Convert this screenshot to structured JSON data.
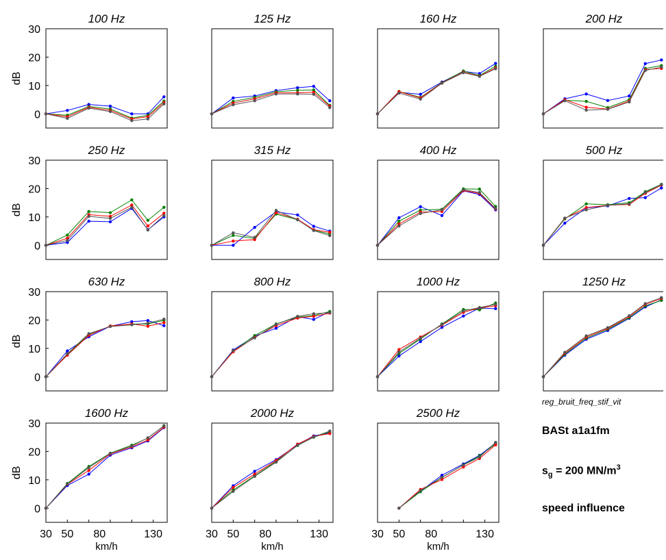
{
  "chart_data": {
    "type": "line",
    "layout": "small-multiples 4x4",
    "x_ticks": [
      30,
      50,
      70,
      90,
      110,
      130
    ],
    "x_tick_labels": [
      "30",
      "50",
      "80",
      "130"
    ],
    "x_tick_label_values": [
      30,
      50,
      80,
      130
    ],
    "xlim": [
      30,
      143
    ],
    "xlabel": "km/h",
    "ylabel": "dB",
    "ylim": [
      -5,
      30
    ],
    "y_ticks": [
      0,
      10,
      20,
      30
    ],
    "series_colors": [
      "#0000ff",
      "#008000",
      "#ff0000",
      "#555555"
    ],
    "panels": [
      {
        "title": "100 Hz",
        "x": [
          30,
          50,
          70,
          90,
          110,
          125,
          140
        ],
        "series": [
          {
            "values": [
              0,
              1.2,
              3.3,
              2.7,
              0,
              0,
              6
            ]
          },
          {
            "values": [
              0,
              -0.5,
              2.6,
              1.7,
              -1.5,
              -0.5,
              4.5
            ]
          },
          {
            "values": [
              0,
              -1,
              2.3,
              1.2,
              -1.8,
              -1,
              4
            ]
          },
          {
            "values": [
              0,
              -1.6,
              2,
              0.8,
              -2.4,
              -1.8,
              3.5
            ]
          }
        ]
      },
      {
        "title": "125 Hz",
        "x": [
          30,
          50,
          70,
          90,
          110,
          125,
          140
        ],
        "series": [
          {
            "values": [
              0,
              5.6,
              6.3,
              8.2,
              9.2,
              9.7,
              4.6
            ]
          },
          {
            "values": [
              0,
              4.4,
              5.8,
              7.8,
              8.3,
              8.4,
              3
            ]
          },
          {
            "values": [
              0,
              3.8,
              5.3,
              7.4,
              7.4,
              7.6,
              2.7
            ]
          },
          {
            "values": [
              0,
              3.2,
              4.6,
              7,
              7,
              6.9,
              2.2
            ]
          }
        ]
      },
      {
        "title": "160 Hz",
        "x": [
          30,
          50,
          70,
          90,
          110,
          125,
          140
        ],
        "series": [
          {
            "values": [
              0,
              7.6,
              6.9,
              11.2,
              15,
              14.2,
              17.8
            ]
          },
          {
            "values": [
              0,
              7.9,
              5.8,
              11,
              15.1,
              13.5,
              16.8
            ]
          },
          {
            "values": [
              0,
              7.8,
              5.6,
              10.9,
              14.7,
              13.3,
              16.2
            ]
          },
          {
            "values": [
              0,
              7.3,
              5.2,
              10.8,
              14.5,
              13.2,
              15.9
            ]
          }
        ]
      },
      {
        "title": "200 Hz",
        "x": [
          30,
          50,
          70,
          90,
          110,
          125,
          140
        ],
        "series": [
          {
            "values": [
              0,
              5.3,
              7,
              4.7,
              6.3,
              17.7,
              19
            ]
          },
          {
            "values": [
              0,
              4.8,
              4.4,
              2.2,
              5,
              16,
              17
            ]
          },
          {
            "values": [
              0,
              5,
              2.3,
              1.7,
              4.5,
              15.6,
              16
            ]
          },
          {
            "values": [
              0,
              4.6,
              1.3,
              1.6,
              4.2,
              15.3,
              16.5
            ]
          }
        ]
      },
      {
        "title": "250 Hz",
        "x": [
          30,
          50,
          70,
          90,
          110,
          125,
          140
        ],
        "series": [
          {
            "values": [
              0,
              1,
              8.5,
              8.3,
              13,
              5.5,
              10
            ]
          },
          {
            "values": [
              0,
              3.6,
              11.9,
              11.5,
              16,
              8.8,
              13.4
            ]
          },
          {
            "values": [
              0,
              2.5,
              10.8,
              10.2,
              14.2,
              6.8,
              11.3
            ]
          },
          {
            "values": [
              0,
              1.7,
              10.2,
              9.5,
              13.4,
              5.4,
              10.5
            ]
          }
        ]
      },
      {
        "title": "315 Hz",
        "x": [
          30,
          50,
          70,
          90,
          110,
          125,
          140
        ],
        "series": [
          {
            "values": [
              0,
              0,
              6.3,
              11.8,
              10.7,
              6.7,
              5
            ]
          },
          {
            "values": [
              0,
              3.5,
              2.4,
              11,
              9,
              5.3,
              4
            ]
          },
          {
            "values": [
              0,
              1.5,
              2,
              11.5,
              9.2,
              5.5,
              4.6
            ]
          },
          {
            "values": [
              0,
              4.4,
              2.8,
              12.3,
              9,
              5.2,
              3.4
            ]
          }
        ]
      },
      {
        "title": "400 Hz",
        "x": [
          30,
          50,
          70,
          90,
          110,
          125,
          140
        ],
        "series": [
          {
            "values": [
              0,
              9.7,
              13.6,
              10.5,
              19.2,
              17.9,
              12.5
            ]
          },
          {
            "values": [
              0,
              8.5,
              12.4,
              12.7,
              19.9,
              19.8,
              13.7
            ]
          },
          {
            "values": [
              0,
              7.5,
              11.7,
              11.9,
              19.3,
              18.3,
              12.8
            ]
          },
          {
            "values": [
              0,
              6.8,
              11.2,
              12.5,
              19.6,
              18.6,
              13
            ]
          }
        ]
      },
      {
        "title": "500 Hz",
        "x": [
          30,
          50,
          70,
          90,
          110,
          125,
          140
        ],
        "series": [
          {
            "values": [
              0,
              7.8,
              13.2,
              13.9,
              16.5,
              16.8,
              20.2
            ]
          },
          {
            "values": [
              0,
              9.3,
              14.6,
              14.3,
              15,
              18.9,
              21.5
            ]
          },
          {
            "values": [
              0,
              9.5,
              13.3,
              14.1,
              14.4,
              18.3,
              21.2
            ]
          },
          {
            "values": [
              0,
              9.6,
              12.5,
              14.1,
              14.6,
              18.6,
              21.4
            ]
          }
        ]
      },
      {
        "title": "630 Hz",
        "x": [
          30,
          50,
          70,
          90,
          110,
          125,
          140
        ],
        "series": [
          {
            "values": [
              0,
              9.1,
              14.1,
              17.8,
              19.4,
              19.8,
              18
            ]
          },
          {
            "values": [
              0,
              7.8,
              15,
              17.8,
              18.6,
              18.6,
              19.9
            ]
          },
          {
            "values": [
              0,
              7.6,
              14.6,
              17.9,
              18.6,
              17.8,
              19.1
            ]
          },
          {
            "values": [
              0,
              8.1,
              15.2,
              17.7,
              18.3,
              18.9,
              20.3
            ]
          }
        ]
      },
      {
        "title": "800 Hz",
        "x": [
          30,
          50,
          70,
          90,
          110,
          125,
          140
        ],
        "series": [
          {
            "values": [
              0,
              9.4,
              14.3,
              17.1,
              21.2,
              20.2,
              22.9
            ]
          },
          {
            "values": [
              0,
              9,
              14.5,
              18.6,
              21,
              21.6,
              23
            ]
          },
          {
            "values": [
              0,
              8.8,
              13.9,
              18,
              20.7,
              21.3,
              22.4
            ]
          },
          {
            "values": [
              0,
              9.2,
              13.7,
              18.5,
              21.3,
              22.2,
              22.6
            ]
          }
        ]
      },
      {
        "title": "1000 Hz",
        "x": [
          30,
          50,
          70,
          90,
          110,
          125,
          140
        ],
        "series": [
          {
            "values": [
              0,
              7.3,
              12.4,
              17.4,
              21.4,
              24.2,
              24
            ]
          },
          {
            "values": [
              0,
              8.2,
              13.3,
              18.6,
              23.7,
              23.6,
              26
            ]
          },
          {
            "values": [
              0,
              9.6,
              14,
              18.2,
              22.7,
              24.3,
              25
            ]
          },
          {
            "values": [
              0,
              8.7,
              13.6,
              18.4,
              23.2,
              24.4,
              25.5
            ]
          }
        ]
      },
      {
        "title": "1250 Hz",
        "x": [
          30,
          50,
          70,
          90,
          110,
          125,
          140
        ],
        "series": [
          {
            "values": [
              0,
              7.6,
              13.2,
              16.3,
              20.6,
              24.6,
              27.1
            ]
          },
          {
            "values": [
              0,
              7.9,
              13.6,
              16.7,
              20.8,
              25,
              26.9
            ]
          },
          {
            "values": [
              0,
              8.3,
              14,
              17,
              21.2,
              25.5,
              27.6
            ]
          },
          {
            "values": [
              0,
              8.6,
              14.4,
              17.3,
              21.5,
              25.8,
              27.9
            ]
          }
        ]
      },
      {
        "title": "1600 Hz",
        "x": [
          30,
          50,
          70,
          90,
          110,
          125,
          140
        ],
        "series": [
          {
            "values": [
              0,
              8,
              12,
              18.7,
              21.3,
              23.7,
              28.4
            ]
          },
          {
            "values": [
              0,
              8.7,
              14.7,
              19.4,
              22.2,
              24.7,
              29.1
            ]
          },
          {
            "values": [
              0,
              8.4,
              13.3,
              19.1,
              21.6,
              24,
              28.6
            ]
          },
          {
            "values": [
              0,
              8.5,
              14.3,
              19.3,
              21.9,
              24.8,
              29
            ]
          }
        ]
      },
      {
        "title": "2000 Hz",
        "x": [
          30,
          50,
          70,
          90,
          110,
          125,
          140
        ],
        "series": [
          {
            "values": [
              0,
              7.9,
              13,
              17.1,
              22.4,
              25.5,
              26.5
            ]
          },
          {
            "values": [
              0,
              6.4,
              11.4,
              16.5,
              22.1,
              25,
              26.9
            ]
          },
          {
            "values": [
              0,
              7.3,
              12,
              16.8,
              22.6,
              25.3,
              26.3
            ]
          },
          {
            "values": [
              0,
              5.9,
              11.2,
              16.2,
              22.2,
              25.1,
              27.2
            ]
          }
        ]
      },
      {
        "title": "2500 Hz",
        "x": [
          50,
          70,
          90,
          110,
          125,
          140
        ],
        "series": [
          {
            "values": [
              0,
              6,
              11.6,
              15.6,
              18.6,
              23
            ]
          },
          {
            "values": [
              0,
              5.8,
              10.8,
              15.3,
              18.4,
              22.6
            ]
          },
          {
            "values": [
              0,
              6.6,
              10.1,
              14.5,
              17.5,
              22.3
            ]
          },
          {
            "values": [
              0,
              6.2,
              10.9,
              15.2,
              18,
              23.2
            ]
          }
        ]
      }
    ]
  },
  "annotations": {
    "source": "reg_bruit_freq_stif_vit",
    "dataset": "BASt a1a1fm",
    "stiffness_symbol": "s",
    "stiffness_subscript": "g",
    "stiffness_value": " = 200 MN/m",
    "stiffness_superscript": "3",
    "description": "speed influence"
  }
}
